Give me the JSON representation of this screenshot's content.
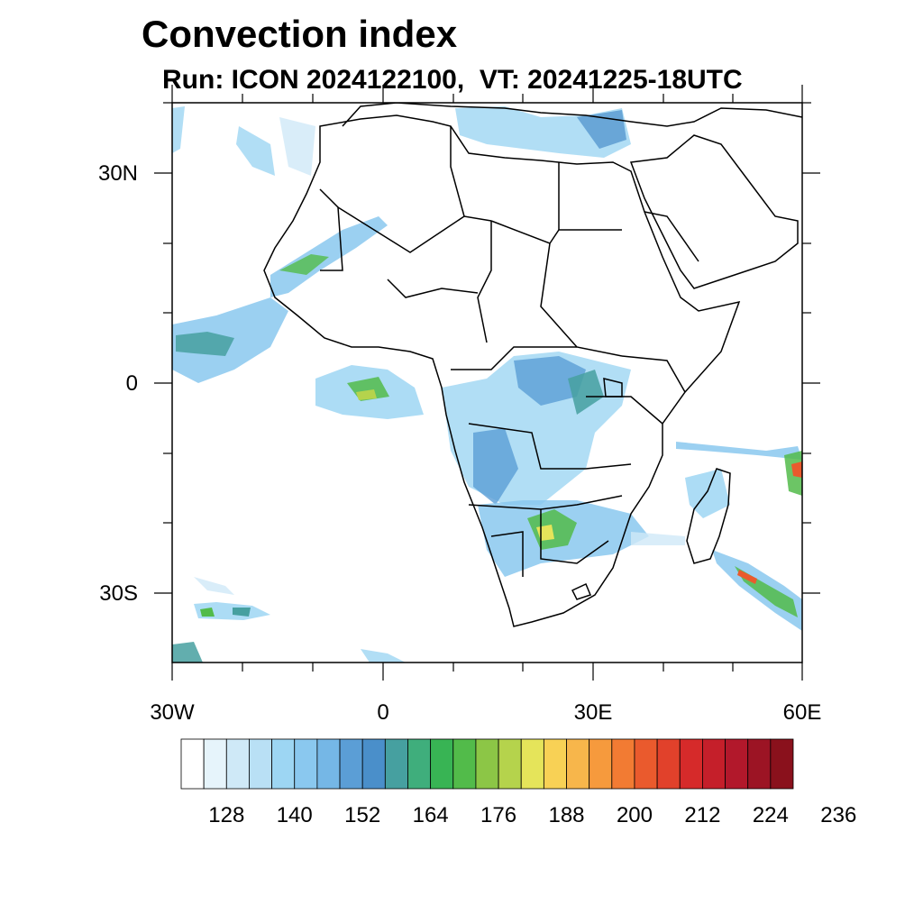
{
  "title": "Convection index",
  "subtitle": "Run: ICON 2024122100,  VT: 20241225-18UTC",
  "axes": {
    "lat_labels": [
      "30N",
      "0",
      "30S"
    ],
    "lon_labels": [
      "30W",
      "0",
      "30E",
      "60E"
    ],
    "lon_range": [
      -30,
      60
    ],
    "lat_range": [
      -40,
      40
    ]
  },
  "colorbar": {
    "labels": [
      "128",
      "140",
      "152",
      "164",
      "176",
      "188",
      "200",
      "212",
      "224",
      "236"
    ],
    "colors": [
      "#ffffff",
      "#e6f4fb",
      "#cfe9f7",
      "#b9e0f5",
      "#9dd6f3",
      "#8ac8ef",
      "#75b7e6",
      "#5b9ed6",
      "#4a8fca",
      "#46a0a0",
      "#3fae7c",
      "#38b454",
      "#52bb4a",
      "#8cc646",
      "#b5d34c",
      "#e5e45a",
      "#f8d155",
      "#f7b64b",
      "#f69a3d",
      "#f27b33",
      "#ea5a2d",
      "#e1412b",
      "#d62a2a",
      "#c51f2a",
      "#b2182b",
      "#9c1424",
      "#8a111c"
    ]
  },
  "colors": {
    "coast": "#000000",
    "background": "#ffffff"
  }
}
